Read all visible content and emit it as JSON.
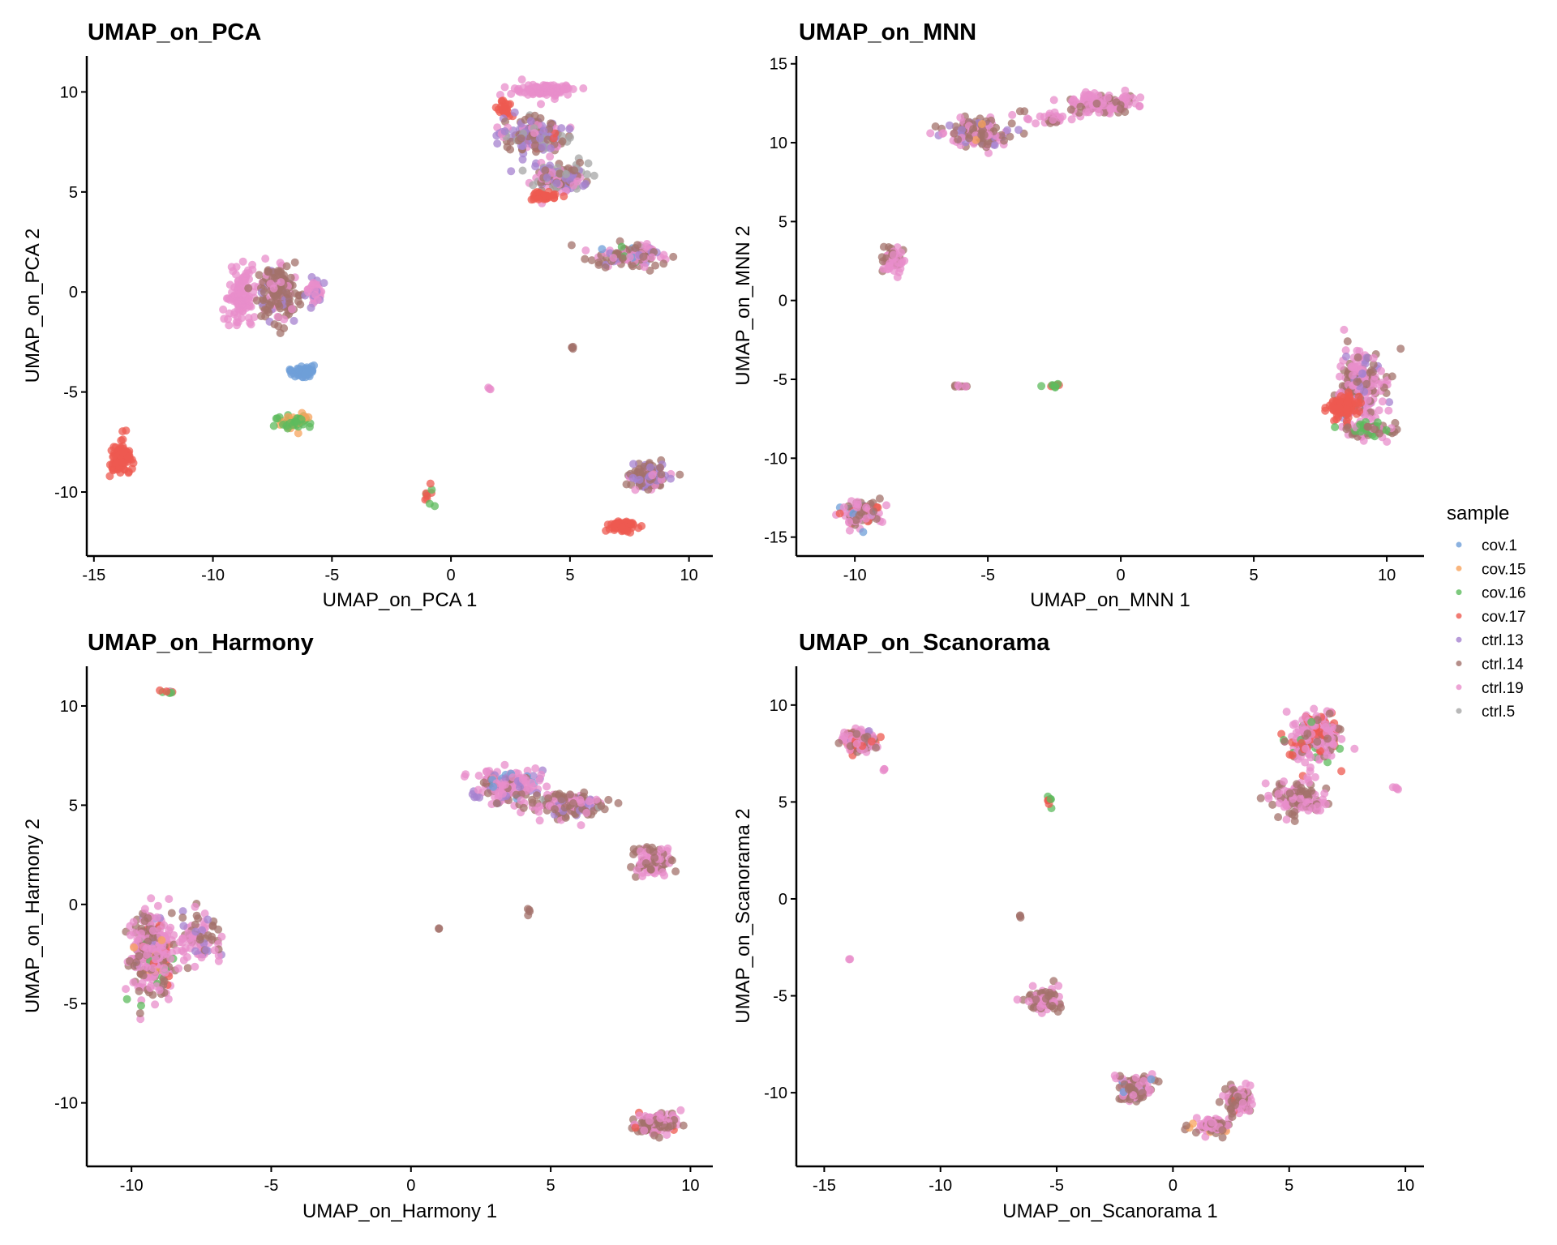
{
  "legend": {
    "title": "sample",
    "items": [
      {
        "label": "cov.1",
        "color": "#6F9FD8"
      },
      {
        "label": "cov.15",
        "color": "#F7A35C"
      },
      {
        "label": "cov.16",
        "color": "#5DBB5D"
      },
      {
        "label": "cov.17",
        "color": "#EE5A50"
      },
      {
        "label": "ctrl.13",
        "color": "#A582CF"
      },
      {
        "label": "ctrl.14",
        "color": "#A3726B"
      },
      {
        "label": "ctrl.19",
        "color": "#E88DCB"
      },
      {
        "label": "ctrl.5",
        "color": "#A6A6A6"
      }
    ]
  },
  "chart_data": [
    {
      "type": "scatter",
      "title": "UMAP_on_PCA",
      "xlabel": "UMAP_on_PCA 1",
      "ylabel": "UMAP_on_PCA 2",
      "xlim": [
        -15.3,
        11
      ],
      "ylim": [
        -13.2,
        11.8
      ],
      "xticks": [
        -15,
        -10,
        -5,
        0,
        5,
        10
      ],
      "yticks": [
        -10,
        -5,
        0,
        5,
        10
      ],
      "grid": false,
      "clusters": [
        {
          "x": 4.0,
          "y": 10.1,
          "sx": 0.9,
          "sy": 0.25,
          "n": 90,
          "mix": {
            "ctrl.19": 1
          }
        },
        {
          "x": 2.2,
          "y": 9.2,
          "sx": 0.25,
          "sy": 0.3,
          "n": 25,
          "mix": {
            "cov.17": 1
          }
        },
        {
          "x": 3.5,
          "y": 7.8,
          "sx": 0.9,
          "sy": 0.6,
          "n": 180,
          "mix": {
            "ctrl.14": 3,
            "ctrl.13": 3,
            "ctrl.5": 1,
            "ctrl.19": 1,
            "cov.17": 0.3
          }
        },
        {
          "x": 4.6,
          "y": 5.7,
          "sx": 0.8,
          "sy": 0.5,
          "n": 160,
          "mix": {
            "ctrl.14": 3,
            "ctrl.13": 2,
            "ctrl.5": 2,
            "ctrl.19": 2
          }
        },
        {
          "x": 3.9,
          "y": 4.8,
          "sx": 0.4,
          "sy": 0.2,
          "n": 35,
          "mix": {
            "cov.17": 1
          }
        },
        {
          "x": 7.5,
          "y": 1.8,
          "sx": 0.9,
          "sy": 0.35,
          "n": 140,
          "mix": {
            "ctrl.14": 3,
            "ctrl.19": 2,
            "ctrl.13": 1,
            "cov.16": 0.3,
            "cov.1": 0.3
          }
        },
        {
          "x": -8.8,
          "y": -0.2,
          "sx": 0.45,
          "sy": 1.0,
          "n": 110,
          "mix": {
            "ctrl.19": 1
          }
        },
        {
          "x": -7.2,
          "y": 0.0,
          "sx": 0.6,
          "sy": 1.1,
          "n": 160,
          "mix": {
            "ctrl.14": 4,
            "ctrl.13": 1,
            "ctrl.19": 1
          }
        },
        {
          "x": -5.7,
          "y": 0.0,
          "sx": 0.3,
          "sy": 0.5,
          "n": 40,
          "mix": {
            "ctrl.19": 2,
            "ctrl.13": 1
          }
        },
        {
          "x": -6.2,
          "y": -4.0,
          "sx": 0.35,
          "sy": 0.2,
          "n": 60,
          "mix": {
            "cov.1": 1
          }
        },
        {
          "x": -6.6,
          "y": -6.5,
          "sx": 0.45,
          "sy": 0.25,
          "n": 60,
          "mix": {
            "cov.16": 3,
            "cov.15": 1
          }
        },
        {
          "x": -13.9,
          "y": -8.3,
          "sx": 0.3,
          "sy": 0.5,
          "n": 100,
          "mix": {
            "cov.17": 1
          }
        },
        {
          "x": 5.1,
          "y": -2.8,
          "sx": 0.05,
          "sy": 0.05,
          "n": 4,
          "mix": {
            "ctrl.14": 1
          }
        },
        {
          "x": 1.6,
          "y": -4.8,
          "sx": 0.05,
          "sy": 0.05,
          "n": 3,
          "mix": {
            "ctrl.19": 1
          }
        },
        {
          "x": -0.9,
          "y": -10.1,
          "sx": 0.15,
          "sy": 0.3,
          "n": 10,
          "mix": {
            "cov.16": 1,
            "cov.17": 1
          }
        },
        {
          "x": 8.3,
          "y": -9.2,
          "sx": 0.5,
          "sy": 0.45,
          "n": 130,
          "mix": {
            "ctrl.14": 3,
            "ctrl.13": 2,
            "ctrl.19": 1
          }
        },
        {
          "x": 7.2,
          "y": -11.7,
          "sx": 0.45,
          "sy": 0.2,
          "n": 55,
          "mix": {
            "cov.17": 1
          }
        }
      ]
    },
    {
      "type": "scatter",
      "title": "UMAP_on_MNN",
      "xlabel": "UMAP_on_MNN 1",
      "ylabel": "UMAP_on_MNN 2",
      "xlim": [
        -12.2,
        11.4
      ],
      "ylim": [
        -16.2,
        15.5
      ],
      "xticks": [
        -10,
        -5,
        0,
        5,
        10
      ],
      "yticks": [
        -15,
        -10,
        -5,
        0,
        5,
        10,
        15
      ],
      "grid": false,
      "clusters": [
        {
          "x": -5.3,
          "y": 10.6,
          "sx": 0.9,
          "sy": 0.6,
          "n": 150,
          "mix": {
            "ctrl.14": 3,
            "ctrl.19": 2,
            "ctrl.13": 1,
            "cov.15": 0.3
          }
        },
        {
          "x": -2.8,
          "y": 11.6,
          "sx": 0.7,
          "sy": 0.3,
          "n": 30,
          "mix": {
            "ctrl.19": 2,
            "ctrl.14": 1
          }
        },
        {
          "x": -0.8,
          "y": 12.5,
          "sx": 0.9,
          "sy": 0.45,
          "n": 140,
          "mix": {
            "ctrl.19": 3,
            "ctrl.14": 1
          }
        },
        {
          "x": -8.6,
          "y": 2.6,
          "sx": 0.25,
          "sy": 0.6,
          "n": 60,
          "mix": {
            "ctrl.19": 2,
            "ctrl.14": 1
          }
        },
        {
          "x": -6.0,
          "y": -5.4,
          "sx": 0.2,
          "sy": 0.1,
          "n": 8,
          "mix": {
            "ctrl.19": 1,
            "ctrl.14": 1
          }
        },
        {
          "x": -2.5,
          "y": -5.4,
          "sx": 0.3,
          "sy": 0.1,
          "n": 10,
          "mix": {
            "cov.17": 1,
            "cov.16": 1
          }
        },
        {
          "x": 9.0,
          "y": -5.5,
          "sx": 0.6,
          "sy": 1.6,
          "n": 220,
          "mix": {
            "ctrl.19": 4,
            "ctrl.14": 2,
            "ctrl.13": 1
          }
        },
        {
          "x": 8.4,
          "y": -6.8,
          "sx": 0.4,
          "sy": 0.6,
          "n": 80,
          "mix": {
            "cov.17": 1
          }
        },
        {
          "x": 9.4,
          "y": -8.2,
          "sx": 0.7,
          "sy": 0.3,
          "n": 70,
          "mix": {
            "cov.16": 2,
            "ctrl.14": 2,
            "ctrl.19": 1
          }
        },
        {
          "x": -9.8,
          "y": -13.5,
          "sx": 0.55,
          "sy": 0.6,
          "n": 110,
          "mix": {
            "ctrl.19": 3,
            "ctrl.14": 2,
            "cov.17": 1,
            "cov.1": 0.5
          }
        }
      ]
    },
    {
      "type": "scatter",
      "title": "UMAP_on_Harmony",
      "xlabel": "UMAP_on_Harmony 1",
      "ylabel": "UMAP_on_Harmony 2",
      "xlim": [
        -11.6,
        10.8
      ],
      "ylim": [
        -13.2,
        12.0
      ],
      "xticks": [
        -10,
        -5,
        0,
        5,
        10
      ],
      "yticks": [
        -10,
        -5,
        0,
        5,
        10
      ],
      "grid": false,
      "clusters": [
        {
          "x": -8.7,
          "y": 10.7,
          "sx": 0.2,
          "sy": 0.05,
          "n": 10,
          "mix": {
            "cov.17": 1,
            "cov.16": 1,
            "ctrl.19": 1
          }
        },
        {
          "x": -9.3,
          "y": -2.5,
          "sx": 0.5,
          "sy": 1.4,
          "n": 330,
          "mix": {
            "ctrl.19": 5,
            "ctrl.14": 2,
            "cov.16": 0.5,
            "cov.17": 0.5,
            "ctrl.13": 0.5,
            "cov.15": 0.3
          }
        },
        {
          "x": -7.6,
          "y": -1.8,
          "sx": 0.6,
          "sy": 0.9,
          "n": 90,
          "mix": {
            "ctrl.19": 3,
            "ctrl.14": 2,
            "ctrl.13": 1
          }
        },
        {
          "x": 1.0,
          "y": -1.2,
          "sx": 0.02,
          "sy": 0.02,
          "n": 2,
          "mix": {
            "ctrl.14": 1
          }
        },
        {
          "x": 4.2,
          "y": -0.2,
          "sx": 0.05,
          "sy": 0.15,
          "n": 4,
          "mix": {
            "ctrl.14": 1,
            "ctrl.19": 1
          }
        },
        {
          "x": 3.5,
          "y": 6.0,
          "sx": 0.9,
          "sy": 0.6,
          "n": 180,
          "mix": {
            "ctrl.19": 4,
            "ctrl.14": 2,
            "ctrl.13": 1,
            "cov.1": 0.4
          }
        },
        {
          "x": 5.5,
          "y": 5.0,
          "sx": 0.9,
          "sy": 0.4,
          "n": 150,
          "mix": {
            "ctrl.14": 3,
            "ctrl.19": 2,
            "ctrl.13": 1,
            "ctrl.5": 0.5
          }
        },
        {
          "x": 8.6,
          "y": 2.2,
          "sx": 0.45,
          "sy": 0.55,
          "n": 110,
          "mix": {
            "ctrl.19": 3,
            "ctrl.14": 2
          }
        },
        {
          "x": 8.8,
          "y": -11.0,
          "sx": 0.5,
          "sy": 0.35,
          "n": 140,
          "mix": {
            "ctrl.14": 3,
            "ctrl.19": 3,
            "cov.17": 0.3
          }
        }
      ]
    },
    {
      "type": "scatter",
      "title": "UMAP_on_Scanorama",
      "xlabel": "UMAP_on_Scanorama 1",
      "ylabel": "UMAP_on_Scanorama 2",
      "xlim": [
        -16.2,
        10.8
      ],
      "ylim": [
        -13.8,
        12.0
      ],
      "xticks": [
        -15,
        -10,
        -5,
        0,
        5,
        10
      ],
      "yticks": [
        -10,
        -5,
        0,
        5,
        10
      ],
      "grid": false,
      "clusters": [
        {
          "x": -13.5,
          "y": 8.2,
          "sx": 0.55,
          "sy": 0.45,
          "n": 110,
          "mix": {
            "ctrl.19": 3,
            "cov.17": 1,
            "ctrl.14": 1,
            "ctrl.13": 0.5
          }
        },
        {
          "x": -12.4,
          "y": 6.7,
          "sx": 0.05,
          "sy": 0.05,
          "n": 3,
          "mix": {
            "ctrl.19": 1
          }
        },
        {
          "x": -5.3,
          "y": 5.0,
          "sx": 0.08,
          "sy": 0.25,
          "n": 8,
          "mix": {
            "cov.17": 1,
            "cov.16": 1
          }
        },
        {
          "x": 6.2,
          "y": 8.3,
          "sx": 0.75,
          "sy": 0.9,
          "n": 220,
          "mix": {
            "ctrl.19": 3,
            "cov.17": 2,
            "ctrl.14": 1,
            "cov.16": 0.5
          }
        },
        {
          "x": 5.5,
          "y": 5.2,
          "sx": 0.8,
          "sy": 0.6,
          "n": 130,
          "mix": {
            "ctrl.19": 3,
            "ctrl.14": 2
          }
        },
        {
          "x": 9.6,
          "y": 5.7,
          "sx": 0.1,
          "sy": 0.05,
          "n": 4,
          "mix": {
            "ctrl.19": 1
          }
        },
        {
          "x": -6.6,
          "y": -0.9,
          "sx": 0.05,
          "sy": 0.1,
          "n": 3,
          "mix": {
            "ctrl.14": 1
          }
        },
        {
          "x": -13.9,
          "y": -3.1,
          "sx": 0.02,
          "sy": 0.02,
          "n": 2,
          "mix": {
            "ctrl.19": 1
          }
        },
        {
          "x": -5.6,
          "y": -5.2,
          "sx": 0.5,
          "sy": 0.5,
          "n": 80,
          "mix": {
            "ctrl.19": 3,
            "ctrl.14": 2
          }
        },
        {
          "x": -1.6,
          "y": -9.8,
          "sx": 0.5,
          "sy": 0.5,
          "n": 100,
          "mix": {
            "ctrl.14": 3,
            "ctrl.19": 2,
            "cov.1": 0.5
          }
        },
        {
          "x": 1.7,
          "y": -11.7,
          "sx": 0.6,
          "sy": 0.3,
          "n": 90,
          "mix": {
            "ctrl.19": 3,
            "ctrl.14": 1,
            "cov.15": 0.3
          }
        },
        {
          "x": 2.8,
          "y": -10.4,
          "sx": 0.4,
          "sy": 0.5,
          "n": 80,
          "mix": {
            "ctrl.14": 3,
            "ctrl.19": 2,
            "cov.17": 0.5
          }
        }
      ]
    }
  ]
}
